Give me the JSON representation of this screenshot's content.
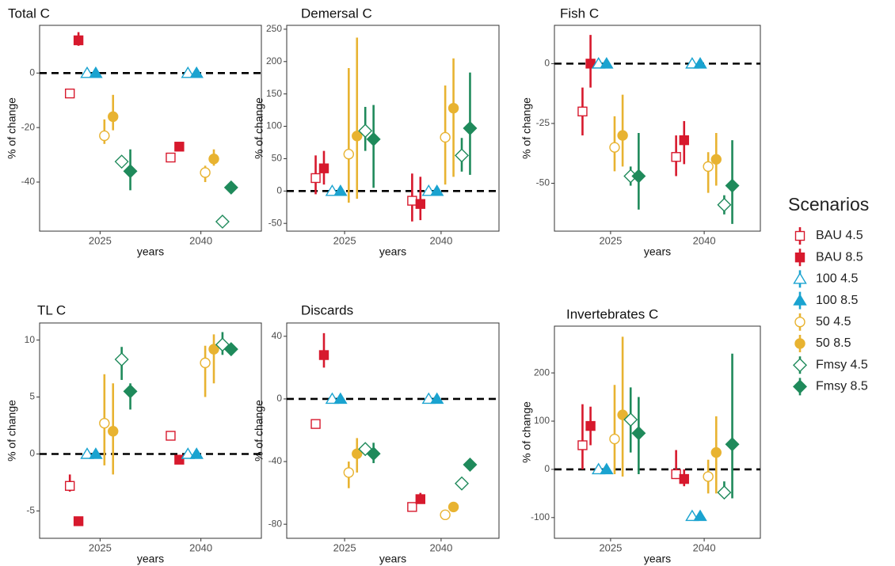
{
  "legend_title": "Scenarios",
  "chart_data": [
    {
      "type": "pointrange",
      "title": "Total C",
      "x_label": "years",
      "y_label": "% of change",
      "categories": [
        "2025",
        "2040"
      ],
      "ylim": [
        -58,
        17.5
      ],
      "yticks": [
        -40,
        -20,
        0
      ],
      "reference_line": 0,
      "series": [
        {
          "name": "BAU 4.5",
          "color": "#d7192d",
          "shape": "square",
          "filled": false,
          "values": [
            -7.5,
            -31
          ],
          "lower": [
            -8,
            -31
          ],
          "upper": [
            -7,
            -31
          ]
        },
        {
          "name": "BAU 8.5",
          "color": "#d7192d",
          "shape": "square",
          "filled": true,
          "values": [
            12,
            -27
          ],
          "lower": [
            10,
            -27
          ],
          "upper": [
            15,
            -27
          ]
        },
        {
          "name": "100 4.5",
          "color": "#1aa3d0",
          "shape": "triangle",
          "filled": false,
          "values": [
            0,
            0
          ],
          "lower": [
            0,
            0
          ],
          "upper": [
            0,
            0
          ]
        },
        {
          "name": "100 8.5",
          "color": "#1aa3d0",
          "shape": "triangle",
          "filled": true,
          "values": [
            0,
            0
          ],
          "lower": [
            0,
            0
          ],
          "upper": [
            0,
            0
          ]
        },
        {
          "name": "50 4.5",
          "color": "#e8b331",
          "shape": "circle",
          "filled": false,
          "values": [
            -23,
            -36.5
          ],
          "lower": [
            -26,
            -40
          ],
          "upper": [
            -17,
            -34
          ]
        },
        {
          "name": "50 8.5",
          "color": "#e8b331",
          "shape": "circle",
          "filled": true,
          "values": [
            -16,
            -31.5
          ],
          "lower": [
            -21,
            -34
          ],
          "upper": [
            -8,
            -28
          ]
        },
        {
          "name": "Fmsy 4.5",
          "color": "#1f8a5b",
          "shape": "diamond",
          "filled": false,
          "values": [
            -32.5,
            -54.5
          ],
          "lower": [
            -33,
            -55
          ],
          "upper": [
            -32,
            -54
          ]
        },
        {
          "name": "Fmsy 8.5",
          "color": "#1f8a5b",
          "shape": "diamond",
          "filled": true,
          "values": [
            -36,
            -42
          ],
          "lower": [
            -43,
            -43
          ],
          "upper": [
            -28,
            -41
          ]
        }
      ]
    },
    {
      "type": "pointrange",
      "title": "Demersal C",
      "x_label": "years",
      "y_label": "% of change",
      "categories": [
        "2025",
        "2040"
      ],
      "ylim": [
        -62,
        256
      ],
      "yticks": [
        -50,
        0,
        50,
        100,
        150,
        200,
        250
      ],
      "reference_line": 0,
      "series": [
        {
          "name": "BAU 4.5",
          "color": "#d7192d",
          "shape": "square",
          "filled": false,
          "values": [
            20,
            -15
          ],
          "lower": [
            -5,
            -47
          ],
          "upper": [
            55,
            27
          ]
        },
        {
          "name": "BAU 8.5",
          "color": "#d7192d",
          "shape": "square",
          "filled": true,
          "values": [
            35,
            -20
          ],
          "lower": [
            10,
            -45
          ],
          "upper": [
            62,
            22
          ]
        },
        {
          "name": "100 4.5",
          "color": "#1aa3d0",
          "shape": "triangle",
          "filled": false,
          "values": [
            0,
            0
          ],
          "lower": [
            0,
            0
          ],
          "upper": [
            0,
            0
          ]
        },
        {
          "name": "100 8.5",
          "color": "#1aa3d0",
          "shape": "triangle",
          "filled": true,
          "values": [
            0,
            0
          ],
          "lower": [
            0,
            0
          ],
          "upper": [
            0,
            0
          ]
        },
        {
          "name": "50 4.5",
          "color": "#e8b331",
          "shape": "circle",
          "filled": false,
          "values": [
            57,
            83
          ],
          "lower": [
            -18,
            10
          ],
          "upper": [
            190,
            163
          ]
        },
        {
          "name": "50 8.5",
          "color": "#e8b331",
          "shape": "circle",
          "filled": true,
          "values": [
            85,
            128
          ],
          "lower": [
            -12,
            22
          ],
          "upper": [
            237,
            205
          ]
        },
        {
          "name": "Fmsy 4.5",
          "color": "#1f8a5b",
          "shape": "diamond",
          "filled": false,
          "values": [
            93,
            55
          ],
          "lower": [
            62,
            30
          ],
          "upper": [
            130,
            82
          ]
        },
        {
          "name": "Fmsy 8.5",
          "color": "#1f8a5b",
          "shape": "diamond",
          "filled": true,
          "values": [
            80,
            97
          ],
          "lower": [
            5,
            25
          ],
          "upper": [
            133,
            183
          ]
        }
      ]
    },
    {
      "type": "pointrange",
      "title": "Fish C",
      "x_label": "years",
      "y_label": "% of change",
      "categories": [
        "2025",
        "2040"
      ],
      "ylim": [
        -70,
        16
      ],
      "yticks": [
        -50,
        -25,
        0
      ],
      "reference_line": 0,
      "series": [
        {
          "name": "BAU 4.5",
          "color": "#d7192d",
          "shape": "square",
          "filled": false,
          "values": [
            -20,
            -39
          ],
          "lower": [
            -30,
            -47
          ],
          "upper": [
            -10,
            -30
          ]
        },
        {
          "name": "BAU 8.5",
          "color": "#d7192d",
          "shape": "square",
          "filled": true,
          "values": [
            0,
            -32
          ],
          "lower": [
            -10,
            -42
          ],
          "upper": [
            12,
            -24
          ]
        },
        {
          "name": "100 4.5",
          "color": "#1aa3d0",
          "shape": "triangle",
          "filled": false,
          "values": [
            0,
            0
          ],
          "lower": [
            0,
            0
          ],
          "upper": [
            0,
            0
          ]
        },
        {
          "name": "100 8.5",
          "color": "#1aa3d0",
          "shape": "triangle",
          "filled": true,
          "values": [
            0,
            0
          ],
          "lower": [
            0,
            0
          ],
          "upper": [
            0,
            0
          ]
        },
        {
          "name": "50 4.5",
          "color": "#e8b331",
          "shape": "circle",
          "filled": false,
          "values": [
            -35,
            -43
          ],
          "lower": [
            -45,
            -54
          ],
          "upper": [
            -22,
            -37
          ]
        },
        {
          "name": "50 8.5",
          "color": "#e8b331",
          "shape": "circle",
          "filled": true,
          "values": [
            -30,
            -40
          ],
          "lower": [
            -43,
            -51
          ],
          "upper": [
            -13,
            -29
          ]
        },
        {
          "name": "Fmsy 4.5",
          "color": "#1f8a5b",
          "shape": "diamond",
          "filled": false,
          "values": [
            -47,
            -59
          ],
          "lower": [
            -51,
            -63
          ],
          "upper": [
            -43,
            -55
          ]
        },
        {
          "name": "Fmsy 8.5",
          "color": "#1f8a5b",
          "shape": "diamond",
          "filled": true,
          "values": [
            -47,
            -51
          ],
          "lower": [
            -61,
            -67
          ],
          "upper": [
            -29,
            -32
          ]
        }
      ]
    },
    {
      "type": "pointrange",
      "title": "TL C",
      "x_label": "years",
      "y_label": "% of change",
      "categories": [
        "2025",
        "2040"
      ],
      "ylim": [
        -7.4,
        11.5
      ],
      "yticks": [
        -5,
        0,
        5,
        10
      ],
      "reference_line": 0,
      "series": [
        {
          "name": "BAU 4.5",
          "color": "#d7192d",
          "shape": "square",
          "filled": false,
          "values": [
            -2.8,
            1.6
          ],
          "lower": [
            -3.3,
            1.2
          ],
          "upper": [
            -1.8,
            1.8
          ]
        },
        {
          "name": "BAU 8.5",
          "color": "#d7192d",
          "shape": "square",
          "filled": true,
          "values": [
            -5.9,
            -0.5
          ],
          "lower": [
            -6,
            -0.9
          ],
          "upper": [
            -5.8,
            -0.3
          ]
        },
        {
          "name": "100 4.5",
          "color": "#1aa3d0",
          "shape": "triangle",
          "filled": false,
          "values": [
            0,
            0
          ],
          "lower": [
            0,
            0
          ],
          "upper": [
            0,
            0
          ]
        },
        {
          "name": "100 8.5",
          "color": "#1aa3d0",
          "shape": "triangle",
          "filled": true,
          "values": [
            0,
            0
          ],
          "lower": [
            0,
            0
          ],
          "upper": [
            0,
            0
          ]
        },
        {
          "name": "50 4.5",
          "color": "#e8b331",
          "shape": "circle",
          "filled": false,
          "values": [
            2.7,
            8
          ],
          "lower": [
            -1,
            5
          ],
          "upper": [
            7,
            9.5
          ]
        },
        {
          "name": "50 8.5",
          "color": "#e8b331",
          "shape": "circle",
          "filled": true,
          "values": [
            2,
            9.2
          ],
          "lower": [
            -1.8,
            6.2
          ],
          "upper": [
            6.2,
            10.5
          ]
        },
        {
          "name": "Fmsy 4.5",
          "color": "#1f8a5b",
          "shape": "diamond",
          "filled": false,
          "values": [
            8.3,
            9.6
          ],
          "lower": [
            6.5,
            8.7
          ],
          "upper": [
            9.4,
            10.7
          ]
        },
        {
          "name": "Fmsy 8.5",
          "color": "#1f8a5b",
          "shape": "diamond",
          "filled": true,
          "values": [
            5.5,
            9.2
          ],
          "lower": [
            3.9,
            9.1
          ],
          "upper": [
            6.2,
            9.3
          ]
        }
      ]
    },
    {
      "type": "pointrange",
      "title": "Discards",
      "x_label": "years",
      "y_label": "% of change",
      "categories": [
        "2025",
        "2040"
      ],
      "ylim": [
        -89,
        48.5
      ],
      "yticks": [
        -80,
        -40,
        0,
        40
      ],
      "reference_line": 0,
      "series": [
        {
          "name": "BAU 4.5",
          "color": "#d7192d",
          "shape": "square",
          "filled": false,
          "values": [
            -16,
            -69
          ],
          "lower": [
            -19,
            -71
          ],
          "upper": [
            -13,
            -67
          ]
        },
        {
          "name": "BAU 8.5",
          "color": "#d7192d",
          "shape": "square",
          "filled": true,
          "values": [
            28,
            -64
          ],
          "lower": [
            20,
            -67
          ],
          "upper": [
            42,
            -60
          ]
        },
        {
          "name": "100 4.5",
          "color": "#1aa3d0",
          "shape": "triangle",
          "filled": false,
          "values": [
            0,
            0
          ],
          "lower": [
            0,
            0
          ],
          "upper": [
            0,
            0
          ]
        },
        {
          "name": "100 8.5",
          "color": "#1aa3d0",
          "shape": "triangle",
          "filled": true,
          "values": [
            0,
            0
          ],
          "lower": [
            0,
            0
          ],
          "upper": [
            0,
            0
          ]
        },
        {
          "name": "50 4.5",
          "color": "#e8b331",
          "shape": "circle",
          "filled": false,
          "values": [
            -47,
            -74
          ],
          "lower": [
            -57,
            -75
          ],
          "upper": [
            -40,
            -73
          ]
        },
        {
          "name": "50 8.5",
          "color": "#e8b331",
          "shape": "circle",
          "filled": true,
          "values": [
            -35,
            -69
          ],
          "lower": [
            -47,
            -72
          ],
          "upper": [
            -25,
            -66
          ]
        },
        {
          "name": "Fmsy 4.5",
          "color": "#1f8a5b",
          "shape": "diamond",
          "filled": false,
          "values": [
            -32,
            -54
          ],
          "lower": [
            -33,
            -56
          ],
          "upper": [
            -31,
            -52
          ]
        },
        {
          "name": "Fmsy 8.5",
          "color": "#1f8a5b",
          "shape": "diamond",
          "filled": true,
          "values": [
            -35,
            -42
          ],
          "lower": [
            -41,
            -43
          ],
          "upper": [
            -28,
            -41
          ]
        }
      ]
    },
    {
      "type": "pointrange",
      "title": "Invertebrates C",
      "x_label": "years",
      "y_label": "% of change",
      "categories": [
        "2025",
        "2040"
      ],
      "ylim": [
        -143,
        297
      ],
      "yticks": [
        -100,
        0,
        100,
        200
      ],
      "reference_line": 0,
      "series": [
        {
          "name": "BAU 4.5",
          "color": "#d7192d",
          "shape": "square",
          "filled": false,
          "values": [
            50,
            -10
          ],
          "lower": [
            0,
            -20
          ],
          "upper": [
            135,
            40
          ]
        },
        {
          "name": "BAU 8.5",
          "color": "#d7192d",
          "shape": "square",
          "filled": true,
          "values": [
            90,
            -20
          ],
          "lower": [
            50,
            -35
          ],
          "upper": [
            130,
            0
          ]
        },
        {
          "name": "100 4.5",
          "color": "#1aa3d0",
          "shape": "triangle",
          "filled": false,
          "values": [
            0,
            -97
          ],
          "lower": [
            0,
            -97
          ],
          "upper": [
            0,
            -97
          ]
        },
        {
          "name": "100 8.5",
          "color": "#1aa3d0",
          "shape": "triangle",
          "filled": true,
          "values": [
            0,
            -97
          ],
          "lower": [
            0,
            -97
          ],
          "upper": [
            0,
            -97
          ]
        },
        {
          "name": "50 4.5",
          "color": "#e8b331",
          "shape": "circle",
          "filled": false,
          "values": [
            63,
            -15
          ],
          "lower": [
            -10,
            -50
          ],
          "upper": [
            175,
            20
          ]
        },
        {
          "name": "50 8.5",
          "color": "#e8b331",
          "shape": "circle",
          "filled": true,
          "values": [
            113,
            35
          ],
          "lower": [
            -15,
            -50
          ],
          "upper": [
            275,
            110
          ]
        },
        {
          "name": "Fmsy 4.5",
          "color": "#1f8a5b",
          "shape": "diamond",
          "filled": false,
          "values": [
            103,
            -48
          ],
          "lower": [
            35,
            -60
          ],
          "upper": [
            170,
            -25
          ]
        },
        {
          "name": "Fmsy 8.5",
          "color": "#1f8a5b",
          "shape": "diamond",
          "filled": true,
          "values": [
            75,
            52
          ],
          "lower": [
            -10,
            -60
          ],
          "upper": [
            150,
            240
          ]
        }
      ]
    }
  ]
}
